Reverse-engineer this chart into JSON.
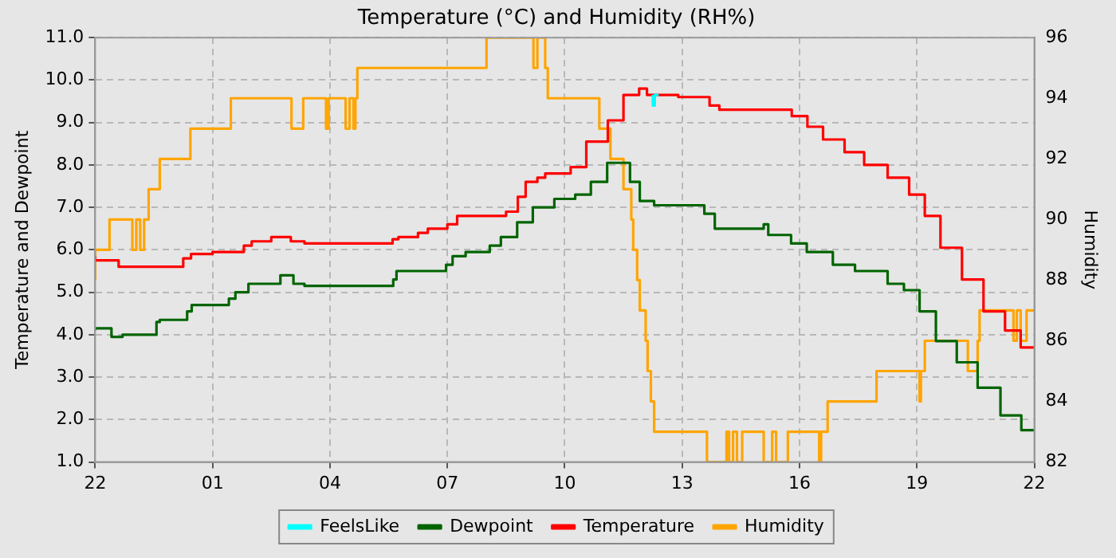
{
  "chart_data": {
    "type": "step",
    "title": "Temperature (°C) and Humidity (RH%)",
    "ylabel": "Temperature and Dewpoint",
    "y2label": "Humidity",
    "xlim": [
      "--01-01T22:00",
      "--01-02T22:00"
    ],
    "xticks": [
      {
        "value": "--01-01T22:00",
        "label": "22"
      },
      {
        "value": "--01-02T01:00",
        "label": "01"
      },
      {
        "value": "--01-02T04:00",
        "label": "04"
      },
      {
        "value": "--01-02T07:00",
        "label": "07"
      },
      {
        "value": "--01-02T10:00",
        "label": "10"
      },
      {
        "value": "--01-02T13:00",
        "label": "13"
      },
      {
        "value": "--01-02T16:00",
        "label": "16"
      },
      {
        "value": "--01-02T19:00",
        "label": "19"
      },
      {
        "value": "--01-02T22:00",
        "label": "22"
      }
    ],
    "ylim": [
      1,
      11
    ],
    "yticks": [
      {
        "value": 1,
        "label": "1.0"
      },
      {
        "value": 2,
        "label": "2.0"
      },
      {
        "value": 3,
        "label": "3.0"
      },
      {
        "value": 4,
        "label": "4.0"
      },
      {
        "value": 5,
        "label": "5.0"
      },
      {
        "value": 6,
        "label": "6.0"
      },
      {
        "value": 7,
        "label": "7.0"
      },
      {
        "value": 8,
        "label": "8.0"
      },
      {
        "value": 9,
        "label": "9.0"
      },
      {
        "value": 10,
        "label": "10.0"
      },
      {
        "value": 11,
        "label": "11.0"
      }
    ],
    "y2lim": [
      82,
      96
    ],
    "y2ticks": [
      82,
      84,
      86,
      88,
      90,
      92,
      94,
      96
    ],
    "grid": true,
    "legend": "bottom",
    "series": [
      {
        "name": "FeelsLike",
        "color": "#00ffff",
        "x": [
          "--01-02T12:15",
          "--01-02T12:18",
          "--01-02T12:24"
        ],
        "values": [
          9.65,
          9.4,
          9.65
        ]
      },
      {
        "name": "Dewpoint",
        "color": "#006400",
        "x": [
          "--01-01T22:00",
          "--01-01T22:25",
          "--01-01T22:42",
          "--01-01T23:34",
          "--01-01T23:39",
          "--01-02T00:21",
          "--01-02T00:28",
          "--01-02T00:46",
          "--01-02T01:25",
          "--01-02T01:35",
          "--01-02T01:55",
          "--01-02T02:44",
          "--01-02T03:04",
          "--01-02T03:21",
          "--01-02T03:34",
          "--01-02T05:37",
          "--01-02T05:42",
          "--01-02T06:26",
          "--01-02T06:58",
          "--01-02T07:08",
          "--01-02T07:28",
          "--01-02T08:05",
          "--01-02T08:22",
          "--01-02T08:47",
          "--01-02T09:11",
          "--01-02T09:31",
          "--01-02T09:44",
          "--01-02T10:16",
          "--01-02T10:40",
          "--01-02T11:05",
          "--01-02T11:40",
          "--01-02T11:55",
          "--01-02T12:17",
          "--01-02T13:34",
          "--01-02T13:50",
          "--01-02T14:16",
          "--01-02T15:05",
          "--01-02T15:12",
          "--01-02T15:47",
          "--01-02T16:11",
          "--01-02T16:51",
          "--01-02T17:25",
          "--01-02T18:15",
          "--01-02T18:40",
          "--01-02T19:04",
          "--01-02T19:29",
          "--01-02T20:01",
          "--01-02T20:33",
          "--01-02T21:08",
          "--01-02T21:40",
          "--01-02T22:00"
        ],
        "values": [
          4.1,
          4.15,
          3.95,
          4.0,
          4.3,
          4.35,
          4.55,
          4.7,
          4.7,
          4.85,
          5.0,
          5.2,
          5.4,
          5.2,
          5.15,
          5.15,
          5.3,
          5.5,
          5.5,
          5.65,
          5.85,
          5.95,
          6.1,
          6.3,
          6.65,
          7.0,
          7.0,
          7.2,
          7.3,
          7.6,
          8.05,
          7.6,
          7.15,
          7.05,
          6.85,
          6.5,
          6.5,
          6.6,
          6.35,
          6.15,
          5.95,
          5.65,
          5.5,
          5.2,
          5.05,
          4.55,
          3.85,
          3.35,
          2.75,
          2.1,
          1.75
        ]
      },
      {
        "name": "Temperature",
        "color": "#ff0000",
        "x": [
          "--01-01T22:00",
          "--01-01T22:36",
          "--01-01T22:45",
          "--01-02T00:15",
          "--01-02T00:27",
          "--01-02T01:00",
          "--01-02T01:48",
          "--01-02T02:00",
          "--01-02T02:30",
          "--01-02T03:00",
          "--01-02T03:21",
          "--01-02T03:51",
          "--01-02T05:36",
          "--01-02T05:45",
          "--01-02T06:15",
          "--01-02T06:30",
          "--01-02T07:00",
          "--01-02T07:15",
          "--01-02T07:33",
          "--01-02T08:00",
          "--01-02T08:30",
          "--01-02T08:48",
          "--01-02T09:00",
          "--01-02T09:18",
          "--01-02T09:30",
          "--01-02T09:51",
          "--01-02T10:09",
          "--01-02T10:33",
          "--01-02T11:06",
          "--01-02T11:30",
          "--01-02T11:54",
          "--01-02T12:06",
          "--01-02T12:54",
          "--01-02T13:42",
          "--01-02T13:57",
          "--01-02T15:48",
          "--01-02T16:12",
          "--01-02T16:36",
          "--01-02T17:09",
          "--01-02T17:39",
          "--01-02T18:15",
          "--01-02T18:48",
          "--01-02T19:12",
          "--01-02T19:36",
          "--01-02T20:09",
          "--01-02T20:42",
          "--01-02T21:15",
          "--01-02T21:39",
          "--01-02T22:00"
        ],
        "values": [
          5.85,
          5.75,
          5.6,
          5.6,
          5.8,
          5.9,
          5.95,
          6.1,
          6.2,
          6.3,
          6.2,
          6.15,
          6.15,
          6.25,
          6.3,
          6.4,
          6.5,
          6.6,
          6.8,
          6.8,
          6.8,
          6.9,
          7.25,
          7.6,
          7.7,
          7.8,
          7.8,
          7.95,
          8.55,
          9.05,
          9.65,
          9.8,
          9.65,
          9.6,
          9.4,
          9.3,
          9.15,
          8.9,
          8.6,
          8.3,
          8.0,
          7.7,
          7.3,
          6.8,
          6.05,
          5.3,
          4.55,
          4.1,
          3.7
        ]
      },
      {
        "name": "Humidity",
        "color": "#ffa500",
        "axis": "y2",
        "x": [
          "--01-01T22:00",
          "--01-01T22:22",
          "--01-01T22:57",
          "--01-01T23:03",
          "--01-01T23:09",
          "--01-01T23:15",
          "--01-01T23:22",
          "--01-01T23:39",
          "--01-02T00:26",
          "--01-02T01:28",
          "--01-02T03:01",
          "--01-02T03:19",
          "--01-02T03:54",
          "--01-02T03:58",
          "--01-02T04:24",
          "--01-02T04:30",
          "--01-02T04:36",
          "--01-02T04:39",
          "--01-02T04:42",
          "--01-02T08:00",
          "--01-02T09:12",
          "--01-02T09:18",
          "--01-02T09:30",
          "--01-02T09:34",
          "--01-02T10:53",
          "--01-02T11:10",
          "--01-02T11:30",
          "--01-02T11:42",
          "--01-02T11:45",
          "--01-02T11:51",
          "--01-02T11:55",
          "--01-02T12:04",
          "--01-02T12:07",
          "--01-02T12:12",
          "--01-02T12:17",
          "--01-02T13:38",
          "--01-02T14:08",
          "--01-02T14:12",
          "--01-02T14:18",
          "--01-02T14:24",
          "--01-02T14:32",
          "--01-02T15:05",
          "--01-02T15:18",
          "--01-02T15:24",
          "--01-02T15:42",
          "--01-02T16:30",
          "--01-02T16:33",
          "--01-02T16:43",
          "--01-02T17:58",
          "--01-02T19:04",
          "--01-02T19:06",
          "--01-02T19:12",
          "--01-02T20:18",
          "--01-02T20:33",
          "--01-02T20:36",
          "--01-02T21:28",
          "--01-02T21:33",
          "--01-02T21:39",
          "--01-02T21:48",
          "--01-02T21:54",
          "--01-02T22:00"
        ],
        "values": [
          88,
          89,
          90,
          89,
          90,
          89,
          90,
          91,
          92,
          93,
          94,
          93,
          94,
          93,
          94,
          93,
          94,
          93,
          94,
          95,
          96,
          95,
          96,
          95,
          94,
          93,
          92,
          91,
          90,
          89,
          88,
          87,
          86,
          85,
          84,
          83,
          82,
          83,
          82,
          83,
          82,
          83,
          82,
          83,
          82,
          83,
          82,
          83,
          84,
          85,
          84,
          85,
          86,
          85,
          86,
          87,
          86,
          87,
          86,
          87,
          87
        ]
      }
    ]
  }
}
